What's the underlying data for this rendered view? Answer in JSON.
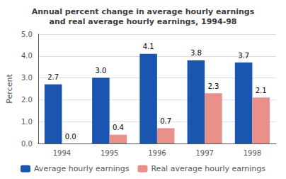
{
  "chart_data": {
    "type": "bar",
    "title": "Annual percent change in average hourly earnings\nand real average hourly earnings, 1994-98",
    "categories": [
      "1994",
      "1995",
      "1996",
      "1997",
      "1998"
    ],
    "series": [
      {
        "name": "Average hourly earnings",
        "color": "#1a56b0",
        "values": [
          2.7,
          3.0,
          4.1,
          3.8,
          3.7
        ],
        "value_labels": [
          "2.7",
          "3.0",
          "4.1",
          "3.8",
          "3.7"
        ]
      },
      {
        "name": "Real average hourly earnings",
        "color": "#e8908a",
        "values": [
          0.0,
          0.4,
          0.7,
          2.3,
          2.1
        ],
        "value_labels": [
          "0.0",
          "0.4",
          "0.7",
          "2.3",
          "2.1"
        ]
      }
    ],
    "ylabel": "Percent",
    "ylim": [
      0.0,
      5.0
    ],
    "yticks": [
      {
        "value": 0,
        "label": "0.0"
      },
      {
        "value": 1,
        "label": "1.0"
      },
      {
        "value": 2,
        "label": "2.0"
      },
      {
        "value": 3,
        "label": "3.0"
      },
      {
        "value": 4,
        "label": "4.0"
      },
      {
        "value": 5,
        "label": "5.0"
      }
    ],
    "grid": true,
    "legend": "bottom",
    "data_labels": true
  }
}
